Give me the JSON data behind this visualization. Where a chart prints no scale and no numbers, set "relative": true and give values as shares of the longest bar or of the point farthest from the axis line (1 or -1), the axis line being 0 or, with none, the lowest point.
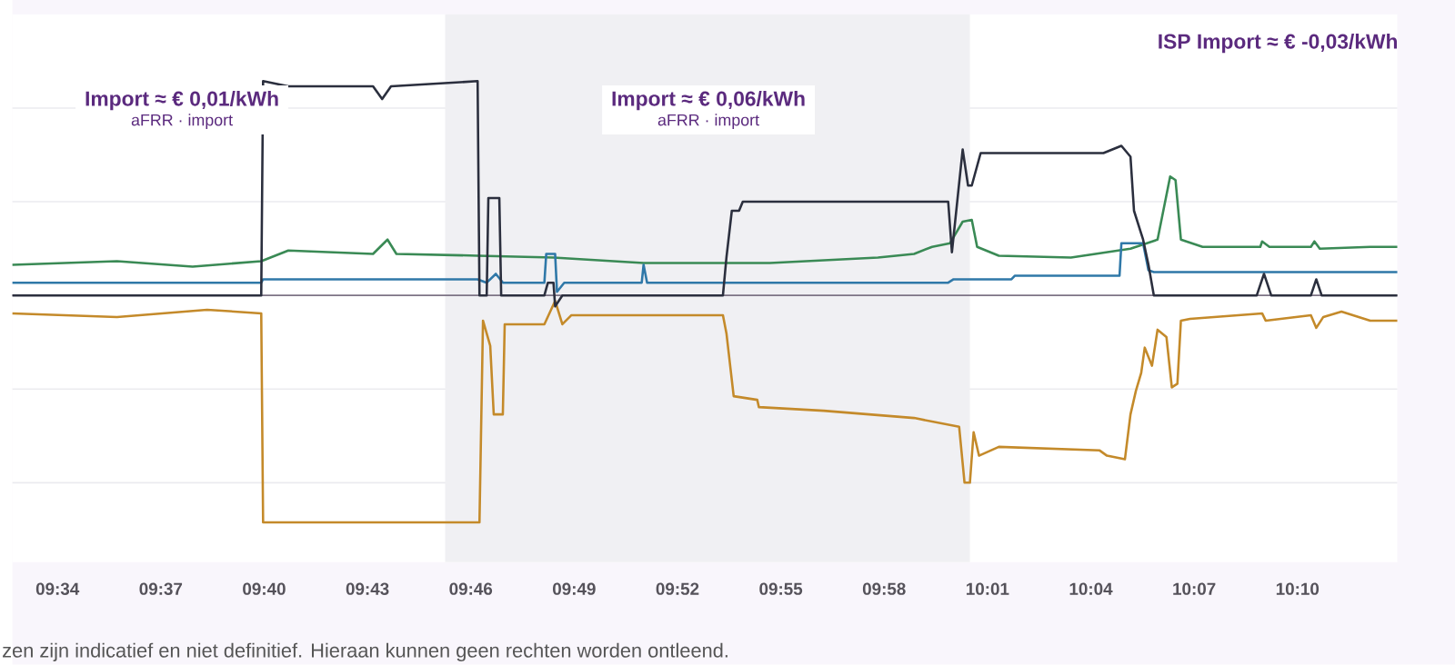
{
  "chart_data": {
    "type": "line",
    "relative": true,
    "grid": "y",
    "xlim": [
      9.5449,
      10.215
    ],
    "xticks": [
      {
        "value": 9.5667,
        "label": "09:34"
      },
      {
        "value": 9.6167,
        "label": "09:37"
      },
      {
        "value": 9.6667,
        "label": "09:40"
      },
      {
        "value": 9.7167,
        "label": "09:43"
      },
      {
        "value": 9.7667,
        "label": "09:46"
      },
      {
        "value": 9.8167,
        "label": "09:49"
      },
      {
        "value": 9.8667,
        "label": "09:52"
      },
      {
        "value": 9.9167,
        "label": "09:55"
      },
      {
        "value": 9.9667,
        "label": "09:58"
      },
      {
        "value": 10.0167,
        "label": "10:01"
      },
      {
        "value": 10.0667,
        "label": "10:04"
      },
      {
        "value": 10.1167,
        "label": "10:07"
      },
      {
        "value": 10.1667,
        "label": "10:10"
      }
    ],
    "bands": [
      {
        "axis": "x",
        "from": 9.7543,
        "to": 10.0082,
        "color": "#f0f0f3"
      }
    ],
    "ref_lines": [
      {
        "axis": "y",
        "value": 0,
        "color": "#7d7385"
      }
    ],
    "series": [
      {
        "color": "#3a8a55",
        "x": [
          9.5449,
          9.5955,
          9.6321,
          9.6653,
          9.6784,
          9.7194,
          9.7264,
          9.7307,
          9.77,
          9.8067,
          9.8503,
          9.9114,
          9.9637,
          9.9812,
          9.9899,
          9.9986,
          10.0047,
          10.0091,
          10.0117,
          10.0222,
          10.0571,
          10.0859,
          10.099,
          10.1051,
          10.1077,
          10.1103,
          10.1208,
          10.1487,
          10.1496,
          10.1531,
          10.1732,
          10.1749,
          10.1775,
          10.2019,
          10.215
        ],
        "values": [
          0.135,
          0.151,
          0.127,
          0.151,
          0.198,
          0.183,
          0.246,
          0.183,
          0.175,
          0.167,
          0.143,
          0.143,
          0.167,
          0.183,
          0.214,
          0.23,
          0.325,
          0.333,
          0.214,
          0.175,
          0.167,
          0.206,
          0.246,
          0.524,
          0.508,
          0.246,
          0.214,
          0.214,
          0.238,
          0.214,
          0.214,
          0.238,
          0.206,
          0.214,
          0.214
        ]
      },
      {
        "color": "#2f78a8",
        "x": [
          9.5449,
          9.6653,
          9.6662,
          9.77,
          9.7744,
          9.7788,
          9.7823,
          9.8023,
          9.8032,
          9.8075,
          9.8084,
          9.8119,
          9.8494,
          9.8503,
          9.852,
          9.9977,
          10.0003,
          10.0283,
          10.03,
          10.0806,
          10.0815,
          10.092,
          10.0946,
          10.0972,
          10.215
        ],
        "values": [
          0.056,
          0.056,
          0.071,
          0.071,
          0.056,
          0.095,
          0.056,
          0.056,
          0.183,
          0.183,
          0.016,
          0.056,
          0.056,
          0.135,
          0.056,
          0.056,
          0.071,
          0.071,
          0.087,
          0.087,
          0.23,
          0.23,
          0.111,
          0.103,
          0.103
        ]
      },
      {
        "color": "#c48a2a",
        "x": [
          9.5449,
          9.5955,
          9.6391,
          9.6653,
          9.6662,
          9.7709,
          9.7726,
          9.7761,
          9.7778,
          9.7822,
          9.7831,
          9.8023,
          9.8075,
          9.811,
          9.8154,
          9.8887,
          9.8904,
          9.8939,
          9.9053,
          9.9061,
          9.9375,
          9.9812,
          10.003,
          10.0056,
          10.0082,
          10.01,
          10.0126,
          10.0222,
          10.071,
          10.0745,
          10.0832,
          10.0859,
          10.0885,
          10.0911,
          10.0928,
          10.0963,
          10.099,
          10.1033,
          10.1059,
          10.1086,
          10.1103,
          10.1147,
          10.1496,
          10.1513,
          10.1732,
          10.1758,
          10.1792,
          10.188,
          10.2019,
          10.215
        ],
        "values": [
          -0.079,
          -0.095,
          -0.063,
          -0.079,
          -1,
          -1,
          -0.111,
          -0.222,
          -0.524,
          -0.524,
          -0.127,
          -0.127,
          -0.024,
          -0.127,
          -0.087,
          -0.087,
          -0.167,
          -0.444,
          -0.46,
          -0.492,
          -0.508,
          -0.54,
          -0.579,
          -0.825,
          -0.825,
          -0.603,
          -0.706,
          -0.667,
          -0.683,
          -0.706,
          -0.722,
          -0.524,
          -0.421,
          -0.341,
          -0.23,
          -0.31,
          -0.151,
          -0.183,
          -0.405,
          -0.389,
          -0.111,
          -0.103,
          -0.079,
          -0.111,
          -0.087,
          -0.143,
          -0.095,
          -0.071,
          -0.111,
          -0.111
        ]
      },
      {
        "color": "#2b2f3e",
        "x": [
          9.5449,
          9.6653,
          9.6662,
          9.6784,
          9.7194,
          9.7238,
          9.7281,
          9.77,
          9.7709,
          9.7744,
          9.7752,
          9.7805,
          9.7814,
          9.8023,
          9.804,
          9.8067,
          9.8075,
          9.811,
          9.8887,
          9.8904,
          9.893,
          9.8965,
          9.8983,
          9.9977,
          9.9995,
          10.0047,
          10.0073,
          10.0091,
          10.0134,
          10.0728,
          10.0815,
          10.0859,
          10.0876,
          10.092,
          10.0946,
          10.0972,
          10.147,
          10.1505,
          10.154,
          10.1732,
          10.1758,
          10.1784,
          10.215
        ],
        "values": [
          0,
          0,
          0.944,
          0.921,
          0.921,
          0.865,
          0.921,
          0.944,
          0,
          0,
          0.429,
          0.429,
          0,
          0,
          0.056,
          0.056,
          -0.048,
          0,
          0,
          0.167,
          0.373,
          0.373,
          0.413,
          0.413,
          0.19,
          0.643,
          0.484,
          0.484,
          0.627,
          0.627,
          0.659,
          0.611,
          0.373,
          0.246,
          0.135,
          0,
          0,
          0.095,
          0,
          0,
          0.071,
          0,
          0
        ]
      }
    ],
    "annotations": [
      "Import ≈ € 0,01/kWh",
      "aFRR · import",
      "Import ≈ € 0,06/kWh",
      "aFRR · import",
      "ISP Import ≈ € -0,03/kWh",
      "zen zijn indicatief en niet definitief. Hieraan kunnen geen rechten worden ontleend."
    ]
  }
}
